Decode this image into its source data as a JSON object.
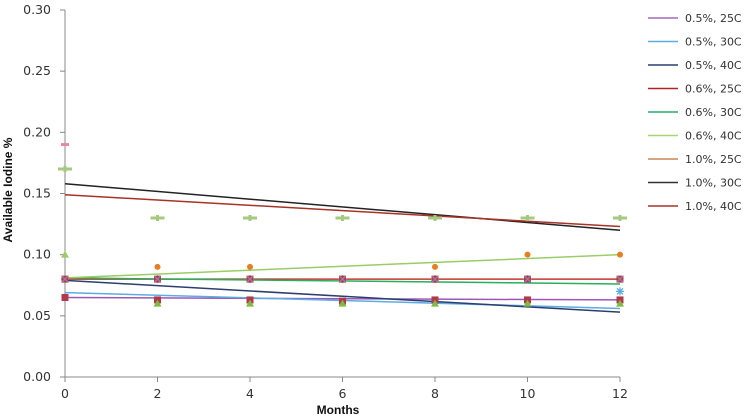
{
  "chart_data": {
    "type": "scatter",
    "title": "",
    "xlabel": "Months",
    "ylabel": "Available Iodine %",
    "xlim": [
      0,
      12
    ],
    "ylim": [
      0,
      0.3
    ],
    "x_ticks": [
      "0",
      "2",
      "4",
      "6",
      "8",
      "10",
      "12"
    ],
    "y_ticks": [
      "0.00",
      "0.05",
      "0.10",
      "0.15",
      "0.20",
      "0.25",
      "0.30"
    ],
    "grid": false,
    "legend_position": "right",
    "series": [
      {
        "name": "0.5%, 25C",
        "color": "#9b59b6",
        "marker": "square",
        "marker_color": "#b03a48",
        "points": [
          [
            0,
            0.065
          ],
          [
            2,
            0.063
          ],
          [
            4,
            0.063
          ],
          [
            6,
            0.062
          ],
          [
            8,
            0.063
          ],
          [
            10,
            0.063
          ],
          [
            12,
            0.063
          ]
        ],
        "trend": [
          [
            0,
            0.065
          ],
          [
            12,
            0.063
          ]
        ]
      },
      {
        "name": "0.5%, 30C",
        "color": "#5dade2",
        "marker": "asterisk",
        "marker_color": "#5dade2",
        "points": [
          [
            0,
            0.08
          ],
          [
            2,
            0.08
          ],
          [
            4,
            0.08
          ],
          [
            6,
            0.08
          ],
          [
            8,
            0.08
          ],
          [
            10,
            0.08
          ],
          [
            12,
            0.07
          ]
        ],
        "trend": [
          [
            0,
            0.069
          ],
          [
            12,
            0.056
          ]
        ]
      },
      {
        "name": "0.5%, 40C",
        "color": "#2c3e70",
        "marker": "triangle",
        "marker_color": "#7dbb42",
        "points": [
          [
            2,
            0.06
          ],
          [
            4,
            0.06
          ],
          [
            6,
            0.06
          ],
          [
            8,
            0.06
          ],
          [
            10,
            0.06
          ],
          [
            12,
            0.06
          ]
        ],
        "trend": [
          [
            0,
            0.079
          ],
          [
            12,
            0.053
          ]
        ]
      },
      {
        "name": "0.6%, 25C",
        "color": "#c0392b",
        "marker": "square",
        "marker_color": "#c0392b",
        "points": [
          [
            0,
            0.08
          ],
          [
            2,
            0.08
          ],
          [
            4,
            0.08
          ],
          [
            6,
            0.08
          ],
          [
            8,
            0.08
          ],
          [
            10,
            0.08
          ],
          [
            12,
            0.08
          ]
        ],
        "trend": [
          [
            0,
            0.08
          ],
          [
            12,
            0.08
          ]
        ]
      },
      {
        "name": "0.6%, 30C",
        "color": "#27ae60",
        "marker": "x",
        "marker_color": "#8e7cc3",
        "points": [
          [
            0,
            0.08
          ],
          [
            2,
            0.08
          ],
          [
            4,
            0.08
          ],
          [
            6,
            0.08
          ],
          [
            8,
            0.08
          ],
          [
            10,
            0.08
          ],
          [
            12,
            0.08
          ]
        ],
        "trend": [
          [
            0,
            0.081
          ],
          [
            12,
            0.076
          ]
        ]
      },
      {
        "name": "0.6%, 40C",
        "color": "#9ccc65",
        "marker": "triangle",
        "marker_color": "#9ccc65",
        "points": [
          [
            0,
            0.1
          ]
        ],
        "trend": [
          [
            0,
            0.081
          ],
          [
            12,
            0.1
          ]
        ]
      },
      {
        "name": "1.0%, 25C",
        "color": "#c8865a",
        "marker": "circle",
        "marker_color": "#e67e22",
        "points": [
          [
            2,
            0.09
          ],
          [
            4,
            0.09
          ],
          [
            8,
            0.09
          ],
          [
            10,
            0.1
          ],
          [
            12,
            0.1
          ]
        ],
        "trend": []
      },
      {
        "name": "1.0%, 30C",
        "color": "#222222",
        "marker": "plus",
        "marker_color": "#a5c882",
        "points": [
          [
            0,
            0.17
          ],
          [
            2,
            0.13
          ],
          [
            4,
            0.13
          ],
          [
            6,
            0.13
          ],
          [
            8,
            0.13
          ],
          [
            10,
            0.13
          ],
          [
            12,
            0.13
          ]
        ],
        "trend": [
          [
            0,
            0.158
          ],
          [
            12,
            0.12
          ]
        ]
      },
      {
        "name": "1.0%, 40C",
        "color": "#a93226",
        "marker": "dash",
        "marker_color": "#e58a9a",
        "points": [
          [
            0,
            0.19
          ]
        ],
        "trend": [
          [
            0,
            0.149
          ],
          [
            12,
            0.123
          ]
        ]
      }
    ]
  },
  "legend": {
    "items": [
      {
        "label": "0.5%, 25C",
        "color": "#a569bd"
      },
      {
        "label": "0.5%, 30C",
        "color": "#5dade2"
      },
      {
        "label": "0.5%, 40C",
        "color": "#2c3e70"
      },
      {
        "label": "0.6%, 25C",
        "color": "#b22222"
      },
      {
        "label": "0.6%, 30C",
        "color": "#27ae60"
      },
      {
        "label": "0.6%, 40C",
        "color": "#a9d46f"
      },
      {
        "label": "1.0%, 25C",
        "color": "#c8865a"
      },
      {
        "label": "1.0%, 30C",
        "color": "#333333"
      },
      {
        "label": "1.0%, 40C",
        "color": "#a93226"
      }
    ]
  },
  "axes": {
    "xlabel": "Months",
    "ylabel": "Available Iodine %"
  }
}
